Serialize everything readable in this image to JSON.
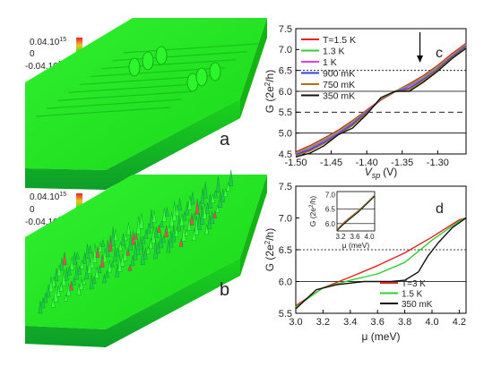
{
  "panel_a": {
    "label": "a",
    "colorbar": {
      "top_label": "0.04.10",
      "top_exp": "15",
      "mid_label": "0",
      "bottom_label": "-0.04.10",
      "bottom_exp": "15"
    },
    "colors": {
      "surface": "#1ee61e",
      "top": "#28f028",
      "shade": "#12b412"
    }
  },
  "panel_b": {
    "label": "b",
    "colorbar": {
      "top_label": "0.04.10",
      "top_exp": "15",
      "mid_label": "0",
      "bottom_label": "-0.04.10",
      "bottom_exp": "15"
    },
    "colors": {
      "surface": "#1ee61e",
      "top": "#3cff3c",
      "shade": "#0fa05a",
      "peak": "#e05050"
    }
  },
  "chart_data": [
    {
      "type": "line",
      "panel_label": "c",
      "xlabel": "V",
      "xlabel_sub": "sp",
      "xlabel_unit": "(V)",
      "ylabel": "G (2e",
      "ylabel_sup": "2",
      "ylabel_tail": "/h)",
      "xlim": [
        -1.5,
        -1.26
      ],
      "ylim": [
        4.5,
        7.5
      ],
      "xticks": [
        -1.5,
        -1.45,
        -1.4,
        -1.35,
        -1.3
      ],
      "xtick_labels": [
        "-1.50",
        "-1.45",
        "-1.40",
        "-1.35",
        "-1.30"
      ],
      "yticks": [
        4.5,
        5.0,
        5.5,
        6.0,
        6.5,
        7.0,
        7.5
      ],
      "ytick_labels": [
        "4.5",
        "5.0",
        "5.5",
        "6.0",
        "6.5",
        "7.0",
        "7.5"
      ],
      "hlines": [
        {
          "y": 5.0,
          "style": "solid"
        },
        {
          "y": 5.5,
          "style": "dashed"
        },
        {
          "y": 6.0,
          "style": "solid"
        },
        {
          "y": 6.5,
          "style": "dotted"
        }
      ],
      "arrow_x": -1.325,
      "legend_position": "top-left",
      "series": [
        {
          "name": "T=1.5 K",
          "color": "#e82020",
          "x": [
            -1.5,
            -1.48,
            -1.46,
            -1.44,
            -1.42,
            -1.4,
            -1.38,
            -1.36,
            -1.34,
            -1.32,
            -1.3,
            -1.28,
            -1.26
          ],
          "y": [
            4.55,
            4.7,
            4.88,
            5.07,
            5.3,
            5.55,
            5.8,
            6.0,
            6.18,
            6.38,
            6.62,
            6.9,
            7.15
          ]
        },
        {
          "name": "1.3 K",
          "color": "#30d030",
          "x": [
            -1.5,
            -1.48,
            -1.46,
            -1.44,
            -1.42,
            -1.4,
            -1.38,
            -1.36,
            -1.34,
            -1.32,
            -1.3,
            -1.28,
            -1.26
          ],
          "y": [
            4.52,
            4.66,
            4.85,
            5.04,
            5.27,
            5.53,
            5.79,
            6.0,
            6.15,
            6.34,
            6.58,
            6.86,
            7.12
          ]
        },
        {
          "name": "1 K",
          "color": "#e040e0",
          "x": [
            -1.5,
            -1.48,
            -1.46,
            -1.44,
            -1.42,
            -1.4,
            -1.38,
            -1.36,
            -1.34,
            -1.32,
            -1.3,
            -1.28,
            -1.26
          ],
          "y": [
            4.5,
            4.63,
            4.82,
            5.01,
            5.24,
            5.52,
            5.79,
            5.99,
            6.12,
            6.31,
            6.55,
            6.84,
            7.1
          ]
        },
        {
          "name": "900 mK",
          "color": "#3040e0",
          "x": [
            -1.5,
            -1.48,
            -1.46,
            -1.44,
            -1.42,
            -1.4,
            -1.38,
            -1.36,
            -1.34,
            -1.32,
            -1.3,
            -1.28,
            -1.26
          ],
          "y": [
            4.48,
            4.6,
            4.78,
            4.98,
            5.21,
            5.5,
            5.8,
            5.99,
            6.08,
            6.28,
            6.53,
            6.82,
            7.08
          ]
        },
        {
          "name": "750 mK",
          "color": "#a07818",
          "x": [
            -1.5,
            -1.48,
            -1.46,
            -1.44,
            -1.42,
            -1.4,
            -1.38,
            -1.36,
            -1.34,
            -1.32,
            -1.3,
            -1.28,
            -1.26
          ],
          "y": [
            4.46,
            4.57,
            4.75,
            4.96,
            5.18,
            5.48,
            5.81,
            5.99,
            6.04,
            6.26,
            6.51,
            6.8,
            7.06
          ]
        },
        {
          "name": "350 mK",
          "color": "#101010",
          "x": [
            -1.5,
            -1.48,
            -1.46,
            -1.44,
            -1.42,
            -1.4,
            -1.38,
            -1.36,
            -1.34,
            -1.32,
            -1.3,
            -1.28,
            -1.26
          ],
          "y": [
            4.43,
            4.52,
            4.7,
            4.96,
            5.12,
            5.45,
            5.85,
            6.0,
            6.0,
            6.22,
            6.48,
            6.78,
            7.03
          ]
        }
      ]
    },
    {
      "type": "line",
      "panel_label": "d",
      "xlabel": "μ (meV)",
      "ylabel": "G (2e",
      "ylabel_sup": "2",
      "ylabel_tail": "/h)",
      "xlim": [
        3.0,
        4.25
      ],
      "ylim": [
        5.5,
        7.5
      ],
      "xticks": [
        3.0,
        3.2,
        3.4,
        3.6,
        3.8,
        4.0,
        4.2
      ],
      "xtick_labels": [
        "3.0",
        "3.2",
        "3.4",
        "3.6",
        "3.8",
        "4.0",
        "4.2"
      ],
      "yticks": [
        5.5,
        6.0,
        6.5,
        7.0,
        7.5
      ],
      "ytick_labels": [
        "5.5",
        "6.0",
        "6.5",
        "7.0",
        "7.5"
      ],
      "hlines": [
        {
          "y": 6.0,
          "style": "solid"
        },
        {
          "y": 6.5,
          "style": "dotted"
        }
      ],
      "legend_position": "bottom-right",
      "series": [
        {
          "name": "T=3 K",
          "color": "#e82020",
          "x": [
            3.0,
            3.2,
            3.4,
            3.6,
            3.8,
            4.0,
            4.2,
            4.25
          ],
          "y": [
            5.62,
            5.9,
            6.07,
            6.25,
            6.45,
            6.7,
            6.97,
            7.0
          ]
        },
        {
          "name": "1.5 K",
          "color": "#30d030",
          "x": [
            3.0,
            3.2,
            3.4,
            3.6,
            3.8,
            4.0,
            4.2,
            4.25
          ],
          "y": [
            5.6,
            5.9,
            6.02,
            6.12,
            6.3,
            6.65,
            6.95,
            7.0
          ]
        },
        {
          "name": "350 mK",
          "color": "#101010",
          "x": [
            3.0,
            3.15,
            3.3,
            3.5,
            3.7,
            3.8,
            3.9,
            3.97,
            4.05,
            4.15,
            4.25
          ],
          "y": [
            5.57,
            5.87,
            5.95,
            6.0,
            6.0,
            6.02,
            6.15,
            6.4,
            6.62,
            6.85,
            7.0
          ]
        }
      ],
      "inset": {
        "xlabel": "μ (meV)",
        "ylabel": "G (2e",
        "ylabel_sup": "2",
        "ylabel_tail": "/h)",
        "xlim": [
          3.1,
          4.15
        ],
        "ylim": [
          5.75,
          7.1
        ],
        "xticks": [
          3.2,
          3.6,
          4.0
        ],
        "xtick_labels": [
          "3.2",
          "3.6",
          "4.0"
        ],
        "yticks": [
          6.0,
          6.5,
          7.0
        ],
        "ytick_labels": [
          "6.0",
          "6.5",
          "7.0"
        ],
        "hlines": [
          {
            "y": 6.0,
            "style": "solid"
          },
          {
            "y": 6.5,
            "style": "solid"
          }
        ],
        "series": [
          {
            "color": "#e82020",
            "x": [
              3.1,
              3.3,
              3.5,
              3.7,
              3.9,
              4.1,
              4.15
            ],
            "y": [
              5.8,
              6.05,
              6.25,
              6.45,
              6.68,
              6.92,
              6.98
            ]
          },
          {
            "color": "#30d030",
            "x": [
              3.1,
              3.3,
              3.5,
              3.7,
              3.9,
              4.1,
              4.15
            ],
            "y": [
              5.78,
              6.02,
              6.22,
              6.42,
              6.66,
              6.9,
              6.96
            ]
          },
          {
            "color": "#101010",
            "x": [
              3.1,
              3.3,
              3.5,
              3.7,
              3.9,
              4.1,
              4.15
            ],
            "y": [
              5.76,
              6.0,
              6.2,
              6.4,
              6.64,
              6.88,
              6.94
            ]
          }
        ]
      }
    }
  ]
}
